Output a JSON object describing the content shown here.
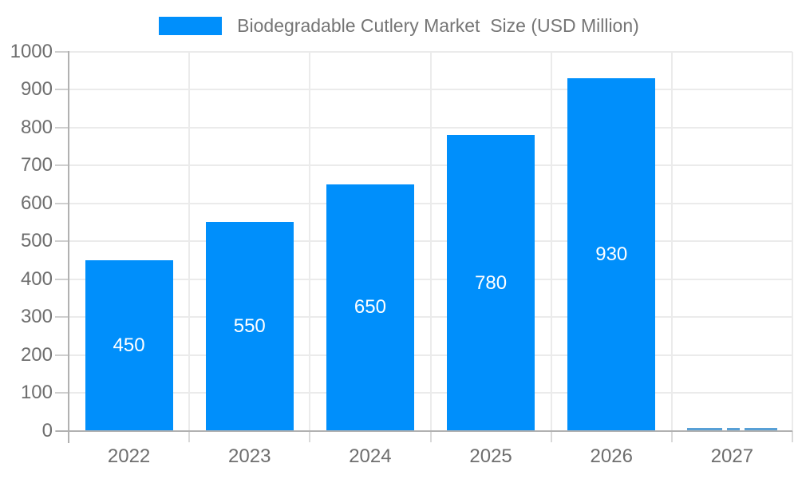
{
  "legend": {
    "swatch_color": "#008FFB",
    "label": "Biodegradable Cutlery Market  Size (USD Million)"
  },
  "chart_data": {
    "type": "bar",
    "title": "Biodegradable Cutlery Market  Size (USD Million)",
    "categories": [
      "2022",
      "2023",
      "2024",
      "2025",
      "2026",
      "2027"
    ],
    "values": [
      450,
      550,
      650,
      780,
      930,
      0
    ],
    "bar_labels": [
      "450",
      "550",
      "650",
      "780",
      "930",
      ""
    ],
    "xlabel": "",
    "ylabel": "",
    "ylim": [
      0,
      1000
    ],
    "yticks": [
      0,
      100,
      200,
      300,
      400,
      500,
      600,
      700,
      800,
      900,
      1000
    ],
    "grid": true,
    "legend_position": "top",
    "colors": {
      "bar": "#008FFB",
      "bar_label": "#FFFFFF",
      "axis_label": "#6E6E6E",
      "legend_text": "#757575",
      "gridline": "#EBEBEB",
      "axis_line": "#B1B1B1",
      "category_tick": "#D9D9D9",
      "zero_bar_sliver": "#58A0D6"
    }
  }
}
